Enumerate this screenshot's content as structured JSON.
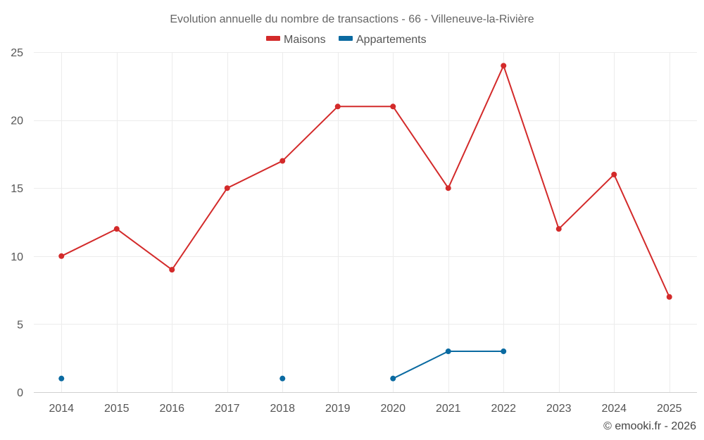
{
  "chart_data": {
    "type": "line",
    "title": "Evolution annuelle du nombre de transactions - 66 - Villeneuve-la-Rivière",
    "categories": [
      "2014",
      "2015",
      "2016",
      "2017",
      "2018",
      "2019",
      "2020",
      "2021",
      "2022",
      "2023",
      "2024",
      "2025"
    ],
    "series": [
      {
        "name": "Maisons",
        "color": "#d32a2a",
        "values": [
          10,
          12,
          9,
          15,
          17,
          21,
          21,
          15,
          24,
          12,
          16,
          7
        ]
      },
      {
        "name": "Appartements",
        "color": "#0a6aa1",
        "values": [
          1,
          null,
          null,
          null,
          1,
          null,
          1,
          3,
          3,
          null,
          null,
          null
        ]
      }
    ],
    "ylim": [
      0,
      25
    ],
    "yticks": [
      0,
      5,
      10,
      15,
      20,
      25
    ],
    "legend_position": "top-center",
    "grid": true
  },
  "credit": "© emooki.fr - 2026"
}
